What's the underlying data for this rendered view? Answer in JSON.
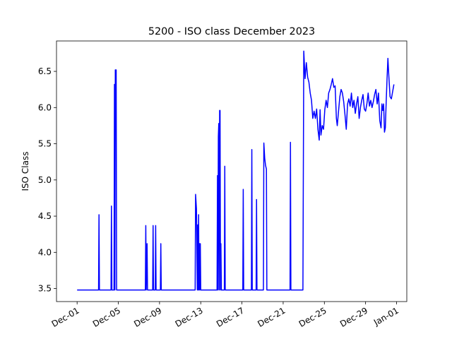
{
  "chart_data": {
    "type": "line",
    "title": "5200 - ISO class December 2023",
    "xlabel": "",
    "ylabel": "ISO Class",
    "x_axis": {
      "type": "date",
      "min": "2023-11-29",
      "max": "2024-01-02",
      "tick_labels": [
        "Dec-01",
        "Dec-05",
        "Dec-09",
        "Dec-13",
        "Dec-17",
        "Dec-21",
        "Dec-25",
        "Dec-29",
        "Jan-01"
      ],
      "tick_dates": [
        "2023-12-01",
        "2023-12-05",
        "2023-12-09",
        "2023-12-13",
        "2023-12-17",
        "2023-12-21",
        "2023-12-25",
        "2023-12-29",
        "2024-01-01"
      ]
    },
    "y_axis": {
      "min": 3.32,
      "max": 6.92,
      "ticks": [
        3.5,
        4.0,
        4.5,
        5.0,
        5.5,
        6.0,
        6.5
      ],
      "tick_labels": [
        "3.5",
        "4.0",
        "4.5",
        "5.0",
        "5.5",
        "6.0",
        "6.5"
      ]
    },
    "grid": false,
    "legend": "none",
    "series": [
      {
        "color": "#0000ff",
        "points": [
          [
            "2023-12-01T00:00",
            3.48
          ],
          [
            "2023-12-03T02:00",
            3.48
          ],
          [
            "2023-12-03T03:00",
            4.52
          ],
          [
            "2023-12-03T04:00",
            3.48
          ],
          [
            "2023-12-04T07:00",
            3.48
          ],
          [
            "2023-12-04T08:00",
            4.64
          ],
          [
            "2023-12-04T09:00",
            3.48
          ],
          [
            "2023-12-04T14:00",
            3.48
          ],
          [
            "2023-12-04T15:00",
            6.32
          ],
          [
            "2023-12-04T16:00",
            3.48
          ],
          [
            "2023-12-04T17:00",
            6.52
          ],
          [
            "2023-12-04T19:00",
            6.52
          ],
          [
            "2023-12-04T20:00",
            3.48
          ],
          [
            "2023-12-07T15:00",
            3.48
          ],
          [
            "2023-12-07T16:00",
            4.37
          ],
          [
            "2023-12-07T17:00",
            3.48
          ],
          [
            "2023-12-07T19:00",
            4.12
          ],
          [
            "2023-12-07T20:00",
            3.48
          ],
          [
            "2023-12-08T08:00",
            3.48
          ],
          [
            "2023-12-08T09:00",
            4.37
          ],
          [
            "2023-12-08T10:00",
            3.48
          ],
          [
            "2023-12-08T14:00",
            3.48
          ],
          [
            "2023-12-08T15:00",
            4.37
          ],
          [
            "2023-12-08T16:00",
            3.48
          ],
          [
            "2023-12-09T02:00",
            3.48
          ],
          [
            "2023-12-09T03:00",
            4.12
          ],
          [
            "2023-12-09T04:00",
            3.48
          ],
          [
            "2023-12-12T11:00",
            3.48
          ],
          [
            "2023-12-12T12:00",
            4.8
          ],
          [
            "2023-12-12T14:00",
            4.6
          ],
          [
            "2023-12-12T16:00",
            3.48
          ],
          [
            "2023-12-12T17:00",
            4.38
          ],
          [
            "2023-12-12T18:00",
            3.48
          ],
          [
            "2023-12-12T19:00",
            4.52
          ],
          [
            "2023-12-12T20:00",
            3.48
          ],
          [
            "2023-12-12T21:00",
            4.12
          ],
          [
            "2023-12-12T22:00",
            3.48
          ],
          [
            "2023-12-12T23:00",
            4.12
          ],
          [
            "2023-12-13T00:00",
            3.48
          ],
          [
            "2023-12-14T14:00",
            3.48
          ],
          [
            "2023-12-14T15:00",
            5.06
          ],
          [
            "2023-12-14T16:00",
            3.48
          ],
          [
            "2023-12-14T17:00",
            5.6
          ],
          [
            "2023-12-14T18:00",
            5.78
          ],
          [
            "2023-12-14T19:00",
            3.48
          ],
          [
            "2023-12-14T20:00",
            5.96
          ],
          [
            "2023-12-14T21:00",
            5.96
          ],
          [
            "2023-12-14T22:00",
            3.48
          ],
          [
            "2023-12-14T23:00",
            4.12
          ],
          [
            "2023-12-15T00:00",
            3.48
          ],
          [
            "2023-12-15T07:00",
            3.48
          ],
          [
            "2023-12-15T08:00",
            5.19
          ],
          [
            "2023-12-15T09:00",
            3.48
          ],
          [
            "2023-12-17T02:00",
            3.48
          ],
          [
            "2023-12-17T03:00",
            4.87
          ],
          [
            "2023-12-17T04:00",
            3.48
          ],
          [
            "2023-12-17T22:00",
            3.48
          ],
          [
            "2023-12-17T23:00",
            5.42
          ],
          [
            "2023-12-18T00:00",
            3.48
          ],
          [
            "2023-12-18T09:00",
            3.48
          ],
          [
            "2023-12-18T10:00",
            4.73
          ],
          [
            "2023-12-18T11:00",
            3.48
          ],
          [
            "2023-12-19T02:00",
            3.48
          ],
          [
            "2023-12-19T03:00",
            5.51
          ],
          [
            "2023-12-19T05:00",
            5.3
          ],
          [
            "2023-12-19T07:00",
            5.2
          ],
          [
            "2023-12-19T09:00",
            5.15
          ],
          [
            "2023-12-19T10:00",
            3.48
          ],
          [
            "2023-12-21T16:00",
            3.48
          ],
          [
            "2023-12-21T17:00",
            5.52
          ],
          [
            "2023-12-21T18:00",
            3.48
          ],
          [
            "2023-12-22T22:00",
            3.48
          ],
          [
            "2023-12-23T00:00",
            6.78
          ],
          [
            "2023-12-23T03:00",
            6.4
          ],
          [
            "2023-12-23T06:00",
            6.62
          ],
          [
            "2023-12-23T09:00",
            6.42
          ],
          [
            "2023-12-23T12:00",
            6.35
          ],
          [
            "2023-12-23T15:00",
            6.2
          ],
          [
            "2023-12-23T18:00",
            6.1
          ],
          [
            "2023-12-23T21:00",
            5.85
          ],
          [
            "2023-12-24T00:00",
            5.95
          ],
          [
            "2023-12-24T03:00",
            5.85
          ],
          [
            "2023-12-24T06:00",
            5.98
          ],
          [
            "2023-12-24T09:00",
            5.7
          ],
          [
            "2023-12-24T12:00",
            5.55
          ],
          [
            "2023-12-24T14:00",
            5.97
          ],
          [
            "2023-12-24T16:00",
            5.62
          ],
          [
            "2023-12-24T19:00",
            5.75
          ],
          [
            "2023-12-24T22:00",
            5.7
          ],
          [
            "2023-12-25T01:00",
            5.97
          ],
          [
            "2023-12-25T04:00",
            6.1
          ],
          [
            "2023-12-25T07:00",
            6.0
          ],
          [
            "2023-12-25T10:00",
            6.2
          ],
          [
            "2023-12-25T13:00",
            6.25
          ],
          [
            "2023-12-25T16:00",
            6.32
          ],
          [
            "2023-12-25T19:00",
            6.4
          ],
          [
            "2023-12-25T22:00",
            6.28
          ],
          [
            "2023-12-26T01:00",
            6.3
          ],
          [
            "2023-12-26T04:00",
            5.85
          ],
          [
            "2023-12-26T06:00",
            5.75
          ],
          [
            "2023-12-26T09:00",
            5.95
          ],
          [
            "2023-12-26T12:00",
            6.15
          ],
          [
            "2023-12-26T15:00",
            6.25
          ],
          [
            "2023-12-26T18:00",
            6.2
          ],
          [
            "2023-12-26T21:00",
            6.08
          ],
          [
            "2023-12-27T00:00",
            5.9
          ],
          [
            "2023-12-27T03:00",
            5.7
          ],
          [
            "2023-12-27T06:00",
            6.05
          ],
          [
            "2023-12-27T09:00",
            6.12
          ],
          [
            "2023-12-27T12:00",
            6.02
          ],
          [
            "2023-12-27T15:00",
            6.2
          ],
          [
            "2023-12-27T18:00",
            6.0
          ],
          [
            "2023-12-27T21:00",
            6.1
          ],
          [
            "2023-12-28T00:00",
            5.92
          ],
          [
            "2023-12-28T03:00",
            6.05
          ],
          [
            "2023-12-28T06:00",
            6.15
          ],
          [
            "2023-12-28T09:00",
            5.85
          ],
          [
            "2023-12-28T12:00",
            6.0
          ],
          [
            "2023-12-28T15:00",
            6.1
          ],
          [
            "2023-12-28T18:00",
            6.18
          ],
          [
            "2023-12-28T21:00",
            5.98
          ],
          [
            "2023-12-29T00:00",
            5.95
          ],
          [
            "2023-12-29T03:00",
            6.05
          ],
          [
            "2023-12-29T06:00",
            6.2
          ],
          [
            "2023-12-29T09:00",
            6.02
          ],
          [
            "2023-12-29T12:00",
            6.1
          ],
          [
            "2023-12-29T15:00",
            6.0
          ],
          [
            "2023-12-29T18:00",
            6.08
          ],
          [
            "2023-12-29T21:00",
            6.18
          ],
          [
            "2023-12-30T00:00",
            6.25
          ],
          [
            "2023-12-30T03:00",
            6.05
          ],
          [
            "2023-12-30T06:00",
            6.2
          ],
          [
            "2023-12-30T09:00",
            5.82
          ],
          [
            "2023-12-30T12:00",
            5.72
          ],
          [
            "2023-12-30T14:00",
            6.05
          ],
          [
            "2023-12-30T16:00",
            5.96
          ],
          [
            "2023-12-30T18:00",
            6.05
          ],
          [
            "2023-12-30T20:00",
            5.66
          ],
          [
            "2023-12-30T22:00",
            5.72
          ],
          [
            "2023-12-31T00:00",
            6.08
          ],
          [
            "2023-12-31T02:00",
            6.4
          ],
          [
            "2023-12-31T04:00",
            6.68
          ],
          [
            "2023-12-31T06:00",
            6.45
          ],
          [
            "2023-12-31T09:00",
            6.15
          ],
          [
            "2023-12-31T12:00",
            6.12
          ],
          [
            "2023-12-31T15:00",
            6.22
          ],
          [
            "2023-12-31T18:00",
            6.32
          ]
        ]
      }
    ]
  }
}
